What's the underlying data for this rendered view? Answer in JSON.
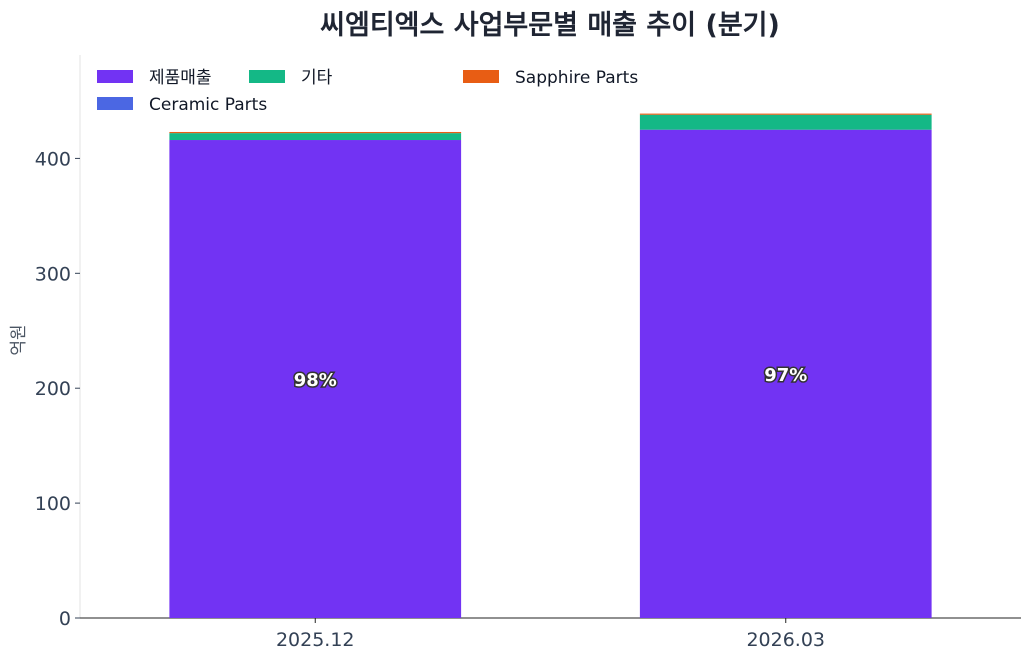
{
  "chart_data": {
    "type": "bar",
    "stacked": true,
    "title": "씨엠티엑스 사업부문별 매출 추이 (분기)",
    "xlabel": "",
    "ylabel": "억원",
    "ylim": [
      0,
      490
    ],
    "yticks": [
      0,
      100,
      200,
      300,
      400
    ],
    "grid": false,
    "legend_position": "top-left",
    "categories": [
      "2025.12",
      "2026.03"
    ],
    "series": [
      {
        "name": "제품매출",
        "color": "#7233f3",
        "values": [
          416,
          425
        ]
      },
      {
        "name": "기타",
        "color": "#14b886",
        "values": [
          6,
          13
        ]
      },
      {
        "name": "Sapphire Parts",
        "color": "#e85d14",
        "values": [
          1,
          1
        ]
      },
      {
        "name": "Ceramic Parts",
        "color": "#4b67e3",
        "values": [
          0,
          0
        ]
      }
    ],
    "annotations": [
      "98%",
      "97%"
    ]
  }
}
